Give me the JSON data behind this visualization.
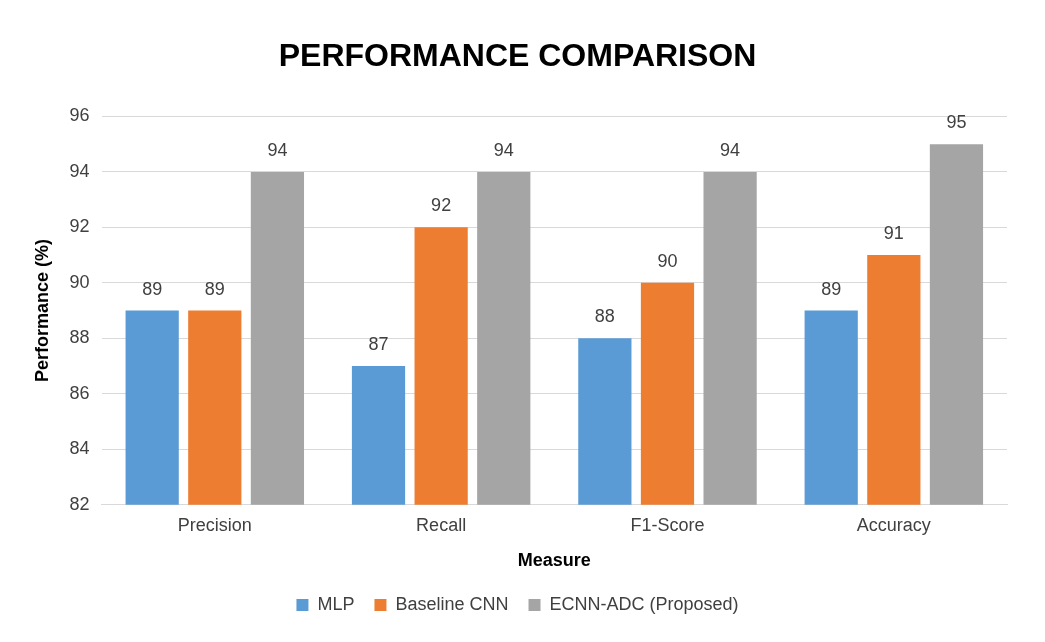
{
  "chart_data": {
    "type": "bar",
    "title": "PERFORMANCE COMPARISON",
    "xlabel": "Measure",
    "ylabel": "Performance (%)",
    "categories": [
      "Precision",
      "Recall",
      "F1-Score",
      "Accuracy"
    ],
    "series": [
      {
        "name": "MLP",
        "color": "#5b9bd5",
        "values": [
          89,
          87,
          88,
          89
        ]
      },
      {
        "name": "Baseline CNN",
        "color": "#ed7d31",
        "values": [
          89,
          92,
          90,
          91
        ]
      },
      {
        "name": "ECNN-ADC (Proposed)",
        "color": "#a5a5a5",
        "values": [
          94,
          94,
          94,
          95
        ]
      }
    ],
    "ylim": [
      82,
      96
    ],
    "yticks": [
      82,
      84,
      86,
      88,
      90,
      92,
      94,
      96
    ],
    "grid": "y",
    "legend": "bottom",
    "data_labels": true
  }
}
